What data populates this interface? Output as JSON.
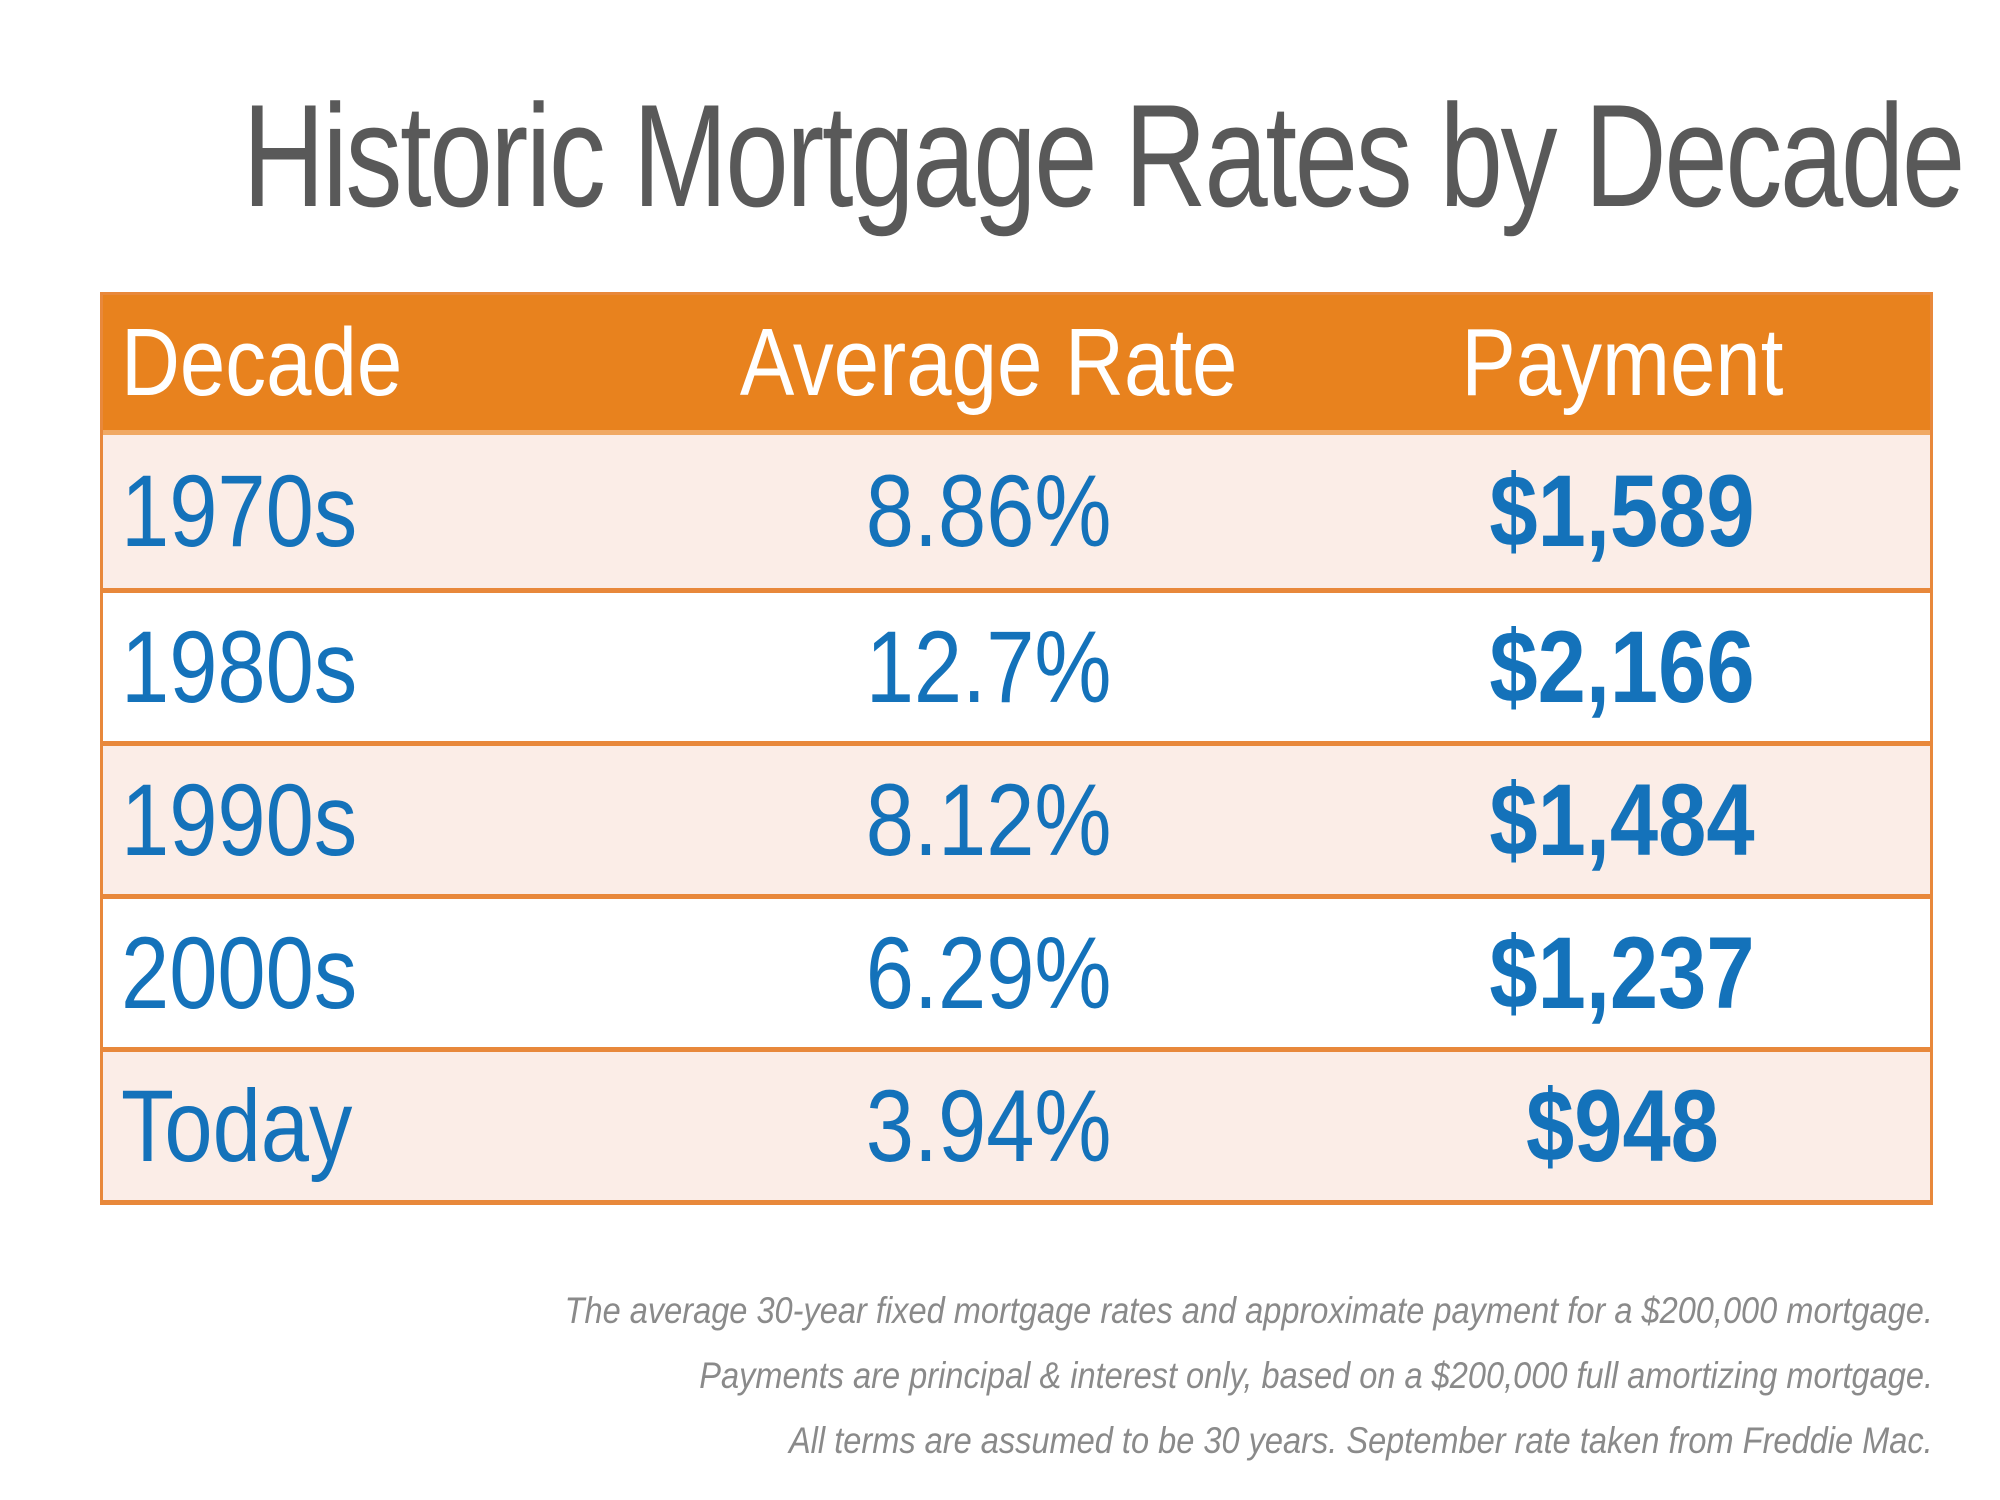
{
  "page": {
    "title": "Historic Mortgage Rates by Decade"
  },
  "table": {
    "headers": [
      "Decade",
      "Average Rate",
      "Payment"
    ],
    "rows": [
      {
        "decade": "1970s",
        "rate": "8.86%",
        "payment": "$1,589"
      },
      {
        "decade": "1980s",
        "rate": "12.7%",
        "payment": "$2,166"
      },
      {
        "decade": "1990s",
        "rate": "8.12%",
        "payment": "$1,484"
      },
      {
        "decade": "2000s",
        "rate": "6.29%",
        "payment": "$1,237"
      },
      {
        "decade": "Today",
        "rate": "3.94%",
        "payment": "$948"
      }
    ]
  },
  "footnote": {
    "lines": [
      "The average 30-year fixed mortgage rates and approximate payment for a $200,000 mortgage.",
      "Payments are principal & interest only, based on a $200,000 full amortizing mortgage.",
      "All terms are assumed to be 30 years. September rate taken from Freddie Mac."
    ]
  },
  "colors": {
    "header_background": "#E8821E",
    "header_text": "#ffffff",
    "row_alt_background": "#FBEDE7",
    "row_background": "#ffffff",
    "table_border": "#E8883B",
    "value_text": "#1472BA",
    "title_text": "#595959",
    "footnote_text": "#8A8A8A"
  },
  "chart_data": {
    "type": "table",
    "title": "Historic Mortgage Rates by Decade",
    "columns": [
      "Decade",
      "Average Rate",
      "Payment"
    ],
    "categories": [
      "1970s",
      "1980s",
      "1990s",
      "2000s",
      "Today"
    ],
    "series": [
      {
        "name": "Average Rate (%)",
        "values": [
          8.86,
          12.7,
          8.12,
          6.29,
          3.94
        ]
      },
      {
        "name": "Payment ($)",
        "values": [
          1589,
          2166,
          1484,
          1237,
          948
        ]
      }
    ],
    "notes": "The average 30-year fixed mortgage rates and approximate payment for a $200,000 mortgage. Payments are principal & interest only, based on a $200,000 full amortizing mortgage. All terms are assumed to be 30 years. September rate taken from Freddie Mac."
  }
}
